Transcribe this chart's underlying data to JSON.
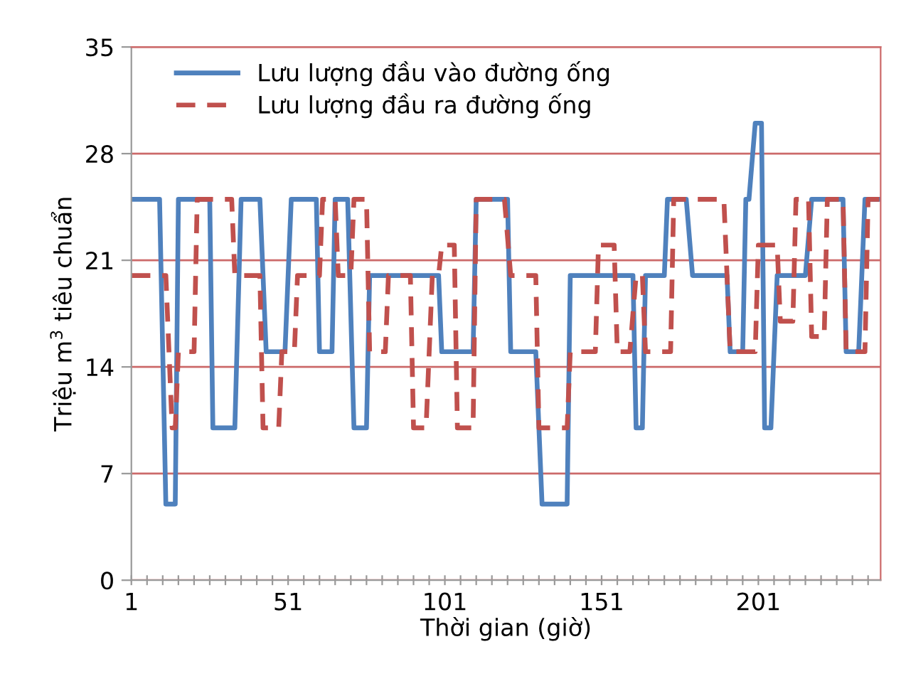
{
  "chart_data": {
    "type": "line",
    "xlabel": "Thời gian (giờ)",
    "ylabel": "Triệu m$^{3}$ tiêu chuẩn",
    "xlim": [
      1,
      240
    ],
    "ylim": [
      0,
      35
    ],
    "yticks": [
      0,
      7,
      14,
      21,
      28,
      35
    ],
    "xticks": [
      1,
      {
        "value": 6,
        "label": null
      },
      {
        "value": 11,
        "label": null
      },
      {
        "value": 16,
        "label": null
      },
      {
        "value": 21,
        "label": null
      },
      {
        "value": 26,
        "label": null
      },
      {
        "value": 31,
        "label": null
      },
      {
        "value": 36,
        "label": null
      },
      {
        "value": 41,
        "label": null
      },
      {
        "value": 46,
        "label": null
      },
      51,
      {
        "value": 56,
        "label": null
      },
      {
        "value": 61,
        "label": null
      },
      {
        "value": 66,
        "label": null
      },
      {
        "value": 71,
        "label": null
      },
      {
        "value": 76,
        "label": null
      },
      {
        "value": 81,
        "label": null
      },
      {
        "value": 86,
        "label": null
      },
      {
        "value": 91,
        "label": null
      },
      {
        "value": 96,
        "label": null
      },
      101,
      {
        "value": 106,
        "label": null
      },
      {
        "value": 111,
        "label": null
      },
      {
        "value": 116,
        "label": null
      },
      {
        "value": 121,
        "label": null
      },
      {
        "value": 126,
        "label": null
      },
      {
        "value": 131,
        "label": null
      },
      {
        "value": 136,
        "label": null
      },
      {
        "value": 141,
        "label": null
      },
      {
        "value": 146,
        "label": null
      },
      151,
      {
        "value": 156,
        "label": null
      },
      {
        "value": 161,
        "label": null
      },
      {
        "value": 166,
        "label": null
      },
      {
        "value": 171,
        "label": null
      },
      {
        "value": 176,
        "label": null
      },
      {
        "value": 181,
        "label": null
      },
      {
        "value": 186,
        "label": null
      },
      {
        "value": 191,
        "label": null
      },
      {
        "value": 196,
        "label": null
      },
      201,
      {
        "value": 206,
        "label": null
      },
      {
        "value": 211,
        "label": null
      },
      {
        "value": 216,
        "label": null
      },
      {
        "value": 221,
        "label": null
      },
      {
        "value": 226,
        "label": null
      },
      {
        "value": 231,
        "label": null
      },
      {
        "value": 236,
        "label": null
      }
    ],
    "grid": "y",
    "legend": "top",
    "series": [
      {
        "name": "Lưu lượng đầu vào đường ống",
        "color": "#4f81bd",
        "line_style": "solid",
        "x": [
          1,
          10,
          12,
          15,
          16,
          26,
          27,
          34,
          36,
          42,
          44,
          50,
          52,
          60,
          61,
          65,
          66,
          70,
          72,
          76,
          77,
          99,
          100,
          110,
          111,
          121,
          122,
          130,
          132,
          140,
          141,
          161,
          162,
          164,
          165,
          171,
          172,
          178,
          180,
          191,
          192,
          196,
          197,
          198,
          200,
          202,
          203,
          205,
          207,
          216,
          218,
          228,
          229,
          233,
          235,
          240
        ],
        "values": [
          25,
          25,
          5,
          5,
          25,
          25,
          10,
          10,
          25,
          25,
          15,
          15,
          25,
          25,
          15,
          15,
          25,
          25,
          10,
          10,
          20,
          20,
          15,
          15,
          25,
          25,
          15,
          15,
          5,
          5,
          20,
          20,
          10,
          10,
          20,
          20,
          25,
          25,
          20,
          20,
          15,
          15,
          25,
          25,
          30,
          30,
          10,
          10,
          20,
          20,
          25,
          25,
          15,
          15,
          25,
          25
        ]
      },
      {
        "name": "Lưu lượng đầu ra đường ống",
        "color": "#c0504d",
        "line_style": "dashed",
        "x": [
          1,
          12,
          14,
          15,
          16,
          21,
          22,
          33,
          34,
          42,
          43,
          48,
          49,
          53,
          54,
          61,
          62,
          66,
          67,
          71,
          72,
          76,
          77,
          82,
          83,
          90,
          91,
          95,
          97,
          99,
          100,
          104,
          105,
          110,
          111,
          120,
          122,
          130,
          131,
          140,
          141,
          149,
          150,
          155,
          156,
          160,
          162,
          164,
          165,
          173,
          174,
          190,
          192,
          200,
          201,
          207,
          208,
          212,
          213,
          217,
          218,
          222,
          223,
          228,
          229,
          235,
          236,
          240
        ],
        "values": [
          20,
          20,
          10,
          10,
          15,
          15,
          25,
          25,
          20,
          20,
          10,
          10,
          15,
          15,
          20,
          20,
          25,
          25,
          20,
          20,
          25,
          25,
          15,
          15,
          20,
          20,
          10,
          10,
          20,
          20,
          22,
          22,
          10,
          10,
          25,
          25,
          20,
          20,
          10,
          10,
          15,
          15,
          22,
          22,
          15,
          15,
          20,
          20,
          15,
          15,
          25,
          25,
          15,
          15,
          22,
          22,
          17,
          17,
          25,
          25,
          16,
          16,
          25,
          25,
          15,
          15,
          25,
          25
        ]
      }
    ]
  }
}
